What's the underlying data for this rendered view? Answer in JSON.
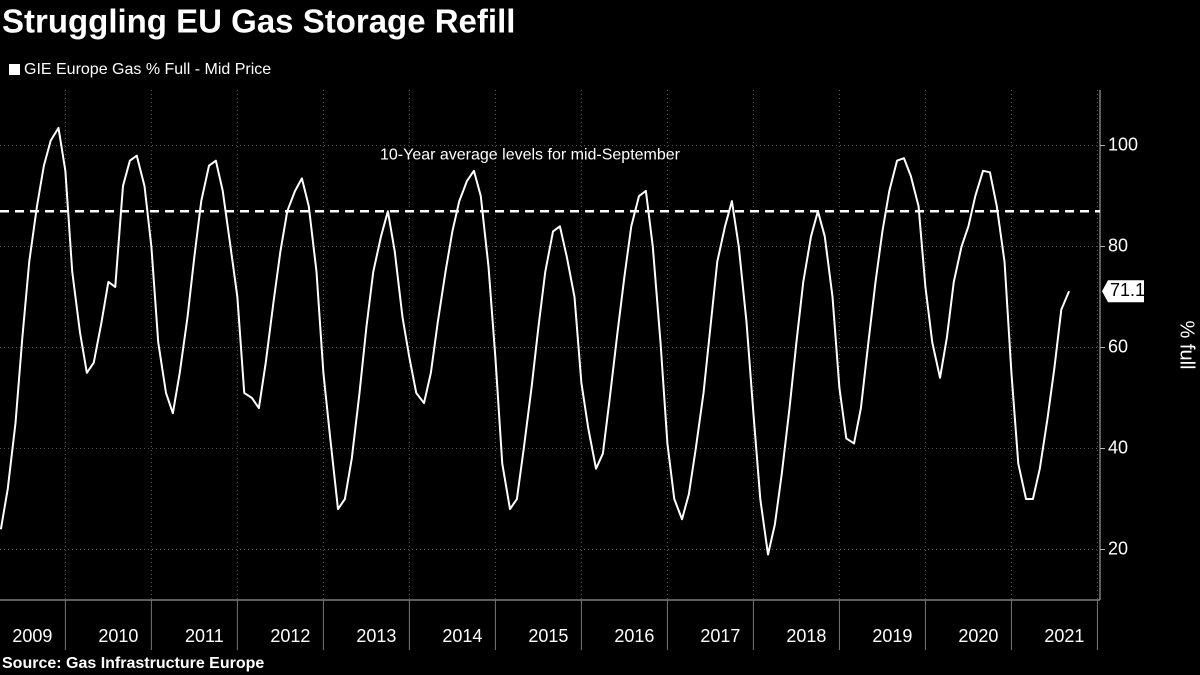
{
  "chart_data": {
    "type": "line",
    "title": "Struggling EU Gas Storage Refill",
    "source": "Source: Gas Infrastructure Europe",
    "y_label": "% full",
    "series": [
      {
        "name": "GIE Europe Gas % Full - Mid Price",
        "color": "#ffffff",
        "x": [
          2009.25,
          2009.33,
          2009.42,
          2009.5,
          2009.58,
          2009.67,
          2009.75,
          2009.83,
          2009.92,
          2010.0,
          2010.08,
          2010.17,
          2010.25,
          2010.33,
          2010.42,
          2010.5,
          2010.58,
          2010.67,
          2010.75,
          2010.83,
          2010.92,
          2011.0,
          2011.08,
          2011.17,
          2011.25,
          2011.33,
          2011.42,
          2011.5,
          2011.58,
          2011.67,
          2011.75,
          2011.83,
          2011.92,
          2012.0,
          2012.08,
          2012.17,
          2012.25,
          2012.33,
          2012.42,
          2012.5,
          2012.58,
          2012.67,
          2012.75,
          2012.83,
          2012.92,
          2013.0,
          2013.08,
          2013.17,
          2013.25,
          2013.33,
          2013.42,
          2013.5,
          2013.58,
          2013.67,
          2013.75,
          2013.83,
          2013.92,
          2014.0,
          2014.08,
          2014.17,
          2014.25,
          2014.33,
          2014.42,
          2014.5,
          2014.58,
          2014.67,
          2014.75,
          2014.83,
          2014.92,
          2015.0,
          2015.08,
          2015.17,
          2015.25,
          2015.33,
          2015.42,
          2015.5,
          2015.58,
          2015.67,
          2015.75,
          2015.83,
          2015.92,
          2016.0,
          2016.08,
          2016.17,
          2016.25,
          2016.33,
          2016.42,
          2016.5,
          2016.58,
          2016.67,
          2016.75,
          2016.83,
          2016.92,
          2017.0,
          2017.08,
          2017.17,
          2017.25,
          2017.33,
          2017.42,
          2017.5,
          2017.58,
          2017.67,
          2017.75,
          2017.83,
          2017.92,
          2018.0,
          2018.08,
          2018.17,
          2018.25,
          2018.33,
          2018.42,
          2018.5,
          2018.58,
          2018.67,
          2018.75,
          2018.83,
          2018.92,
          2019.0,
          2019.08,
          2019.17,
          2019.25,
          2019.33,
          2019.42,
          2019.5,
          2019.58,
          2019.67,
          2019.75,
          2019.83,
          2019.92,
          2020.0,
          2020.08,
          2020.17,
          2020.25,
          2020.33,
          2020.42,
          2020.5,
          2020.58,
          2020.67,
          2020.75,
          2020.83,
          2020.92,
          2021.0,
          2021.08,
          2021.17,
          2021.25,
          2021.33,
          2021.42,
          2021.5,
          2021.58,
          2021.67
        ],
        "values": [
          24,
          32,
          45,
          62,
          77,
          88,
          96,
          101,
          103.5,
          95,
          75,
          63,
          55,
          57,
          65,
          73,
          72,
          92,
          97,
          98,
          92,
          80,
          61,
          51,
          47,
          55,
          66,
          78,
          89,
          96,
          97,
          91,
          80,
          70,
          51,
          50,
          48,
          57,
          69,
          79,
          87,
          91,
          93.5,
          88,
          75,
          55,
          42,
          28,
          30,
          38,
          51,
          64,
          75,
          82,
          87,
          79,
          66,
          58,
          51,
          49,
          55,
          65,
          75,
          83,
          89,
          93,
          95,
          90,
          76,
          58,
          37,
          28,
          30,
          40,
          52,
          64,
          75,
          83,
          84,
          78,
          70,
          53,
          44,
          36,
          39,
          50,
          63,
          74,
          84,
          90,
          91,
          80,
          61,
          41,
          30,
          26,
          31,
          40,
          51,
          64,
          77,
          84,
          89,
          80,
          65,
          47,
          30,
          19,
          25,
          35,
          48,
          61,
          73,
          82,
          87,
          82,
          70,
          52,
          42,
          41,
          48,
          60,
          73,
          83,
          91,
          97,
          97.5,
          94,
          88,
          72,
          61,
          54,
          62,
          73,
          80,
          84,
          90,
          95,
          94.7,
          88,
          77,
          55,
          37,
          30,
          30,
          36,
          46,
          56,
          67.5,
          71.14
        ]
      }
    ],
    "reference_lines": [
      {
        "value": 87,
        "label": "10-Year average levels for mid-September"
      }
    ],
    "xlim": [
      2009.24,
      2022.03
    ],
    "xticks": [
      {
        "value": 2009.5,
        "label": "2009"
      },
      {
        "value": 2010.5,
        "label": "2010"
      },
      {
        "value": 2011.5,
        "label": "2011"
      },
      {
        "value": 2012.5,
        "label": "2012"
      },
      {
        "value": 2013.5,
        "label": "2013"
      },
      {
        "value": 2014.5,
        "label": "2014"
      },
      {
        "value": 2015.5,
        "label": "2015"
      },
      {
        "value": 2016.5,
        "label": "2016"
      },
      {
        "value": 2017.5,
        "label": "2017"
      },
      {
        "value": 2018.5,
        "label": "2018"
      },
      {
        "value": 2019.5,
        "label": "2019"
      },
      {
        "value": 2020.5,
        "label": "2020"
      },
      {
        "value": 2021.5,
        "label": "2021"
      }
    ],
    "ylim": [
      10,
      111
    ],
    "yticks": [
      20,
      40,
      60,
      80,
      100
    ],
    "grid": true
  }
}
